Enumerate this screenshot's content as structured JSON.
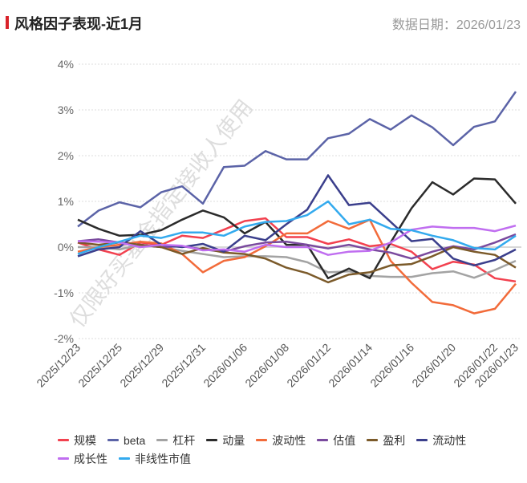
{
  "header": {
    "title": "风格因子表现-近1月",
    "date_label": "数据日期：2026/01/23"
  },
  "watermark": "仅限好买基金指定接收人使用",
  "chart_data": {
    "type": "line",
    "title": "风格因子表现-近1月",
    "xlabel": "",
    "ylabel": "",
    "ylim": [
      -2,
      4
    ],
    "yticks": [
      -2,
      -1,
      0,
      1,
      2,
      3,
      4
    ],
    "ytick_labels": [
      "-2%",
      "-1%",
      "0%",
      "1%",
      "2%",
      "3%",
      "4%"
    ],
    "grid": true,
    "legend_position": "bottom",
    "x": [
      "2025/12/23",
      "2025/12/24",
      "2025/12/25",
      "2025/12/26",
      "2025/12/29",
      "2025/12/30",
      "2025/12/31",
      "2026/01/05",
      "2026/01/06",
      "2026/01/07",
      "2026/01/08",
      "2026/01/09",
      "2026/01/12",
      "2026/01/13",
      "2026/01/14",
      "2026/01/15",
      "2026/01/16",
      "2026/01/19",
      "2026/01/20",
      "2026/01/21",
      "2026/01/22",
      "2026/01/23"
    ],
    "xtick_labels": [
      "2025/12/23",
      "2025/12/25",
      "2025/12/29",
      "2025/12/31",
      "2026/01/06",
      "2026/01/08",
      "2026/01/12",
      "2026/01/14",
      "2026/01/16",
      "2026/01/20",
      "2026/01/22",
      "2026/01/23"
    ],
    "series": [
      {
        "name": "规模",
        "color": "#f2414f",
        "values": [
          0.1,
          -0.05,
          -0.17,
          0.1,
          0.05,
          0.25,
          0.2,
          0.38,
          0.57,
          0.63,
          0.22,
          0.22,
          0.07,
          0.17,
          0.02,
          0.07,
          -0.1,
          -0.48,
          -0.32,
          -0.38,
          -0.68,
          -0.75
        ]
      },
      {
        "name": "beta",
        "color": "#5b63a7",
        "values": [
          0.45,
          0.8,
          0.98,
          0.87,
          1.2,
          1.33,
          0.95,
          1.75,
          1.78,
          2.1,
          1.92,
          1.92,
          2.38,
          2.48,
          2.8,
          2.57,
          2.88,
          2.62,
          2.23,
          2.63,
          2.75,
          3.4
        ]
      },
      {
        "name": "杠杆",
        "color": "#a3a3a3",
        "values": [
          0,
          0,
          -0.05,
          0.05,
          0,
          -0.08,
          -0.15,
          -0.22,
          -0.2,
          -0.2,
          -0.22,
          -0.33,
          -0.55,
          -0.53,
          -0.63,
          -0.65,
          -0.65,
          -0.57,
          -0.53,
          -0.67,
          -0.5,
          -0.3
        ]
      },
      {
        "name": "动量",
        "color": "#2b2b2b",
        "values": [
          0.6,
          0.4,
          0.25,
          0.27,
          0.37,
          0.6,
          0.8,
          0.65,
          0.3,
          0.55,
          0.05,
          0.05,
          -0.68,
          -0.47,
          -0.68,
          0.1,
          0.85,
          1.42,
          1.15,
          1.5,
          1.48,
          0.95
        ]
      },
      {
        "name": "波动性",
        "color": "#f26b3a",
        "values": [
          -0.1,
          0,
          0.05,
          0.12,
          0.08,
          -0.15,
          -0.55,
          -0.3,
          -0.22,
          0.02,
          0.3,
          0.3,
          0.57,
          0.4,
          0.6,
          -0.3,
          -0.78,
          -1.2,
          -1.27,
          -1.45,
          -1.35,
          -0.8
        ]
      },
      {
        "name": "估值",
        "color": "#7a4a9e",
        "values": [
          0.13,
          0.17,
          0.1,
          0.05,
          0,
          0.02,
          -0.05,
          -0.1,
          0.02,
          0.1,
          0.12,
          0.05,
          -0.03,
          0.05,
          -0.05,
          -0.12,
          -0.25,
          -0.1,
          0.02,
          -0.05,
          0.1,
          0.28
        ]
      },
      {
        "name": "盈利",
        "color": "#7b5a2a",
        "values": [
          0.1,
          0.05,
          0.1,
          0.05,
          0,
          -0.15,
          -0.02,
          -0.12,
          -0.15,
          -0.25,
          -0.45,
          -0.57,
          -0.77,
          -0.6,
          -0.55,
          -0.4,
          -0.37,
          -0.2,
          0,
          -0.1,
          -0.17,
          -0.45
        ]
      },
      {
        "name": "流动性",
        "color": "#3b3f8c",
        "values": [
          -0.2,
          -0.05,
          0,
          0.35,
          0.05,
          0,
          0.07,
          -0.1,
          0.25,
          0.15,
          0.5,
          0.82,
          1.57,
          0.92,
          0.97,
          0.55,
          0.13,
          0.18,
          -0.25,
          -0.4,
          -0.28,
          -0.05
        ]
      },
      {
        "name": "成长性",
        "color": "#c06ef0",
        "values": [
          0.13,
          0.12,
          0.1,
          0,
          0.05,
          0.03,
          -0.07,
          -0.05,
          -0.1,
          0.05,
          0,
          0,
          -0.17,
          -0.1,
          -0.08,
          0.1,
          0.38,
          0.45,
          0.42,
          0.42,
          0.35,
          0.47
        ]
      },
      {
        "name": "非线性市值",
        "color": "#33aaee",
        "values": [
          -0.15,
          0,
          0.12,
          0.25,
          0.2,
          0.32,
          0.32,
          0.25,
          0.45,
          0.55,
          0.57,
          0.7,
          1.0,
          0.5,
          0.6,
          0.4,
          0.37,
          0.25,
          0.15,
          -0.02,
          -0.05,
          0.25
        ]
      }
    ]
  }
}
